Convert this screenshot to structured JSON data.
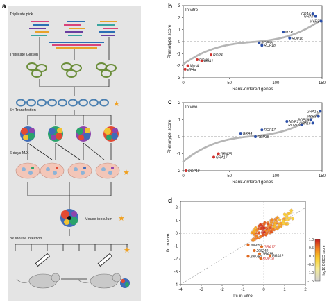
{
  "panel_letters": {
    "a": "a",
    "b": "b",
    "c": "c",
    "d": "d"
  },
  "workflow": {
    "steps": [
      "Triplicate pick",
      "Triplicate Gibson",
      "5× Transfection",
      "6 days M/X",
      "Mouse inoculum",
      "8× Mouse infection"
    ],
    "star_color": "#f0a020"
  },
  "chart_data": [
    {
      "panel": "b",
      "type": "scatter",
      "inset_title": "In vitro",
      "xlabel": "Rank-ordered genes",
      "ylabel": "Phenotype score",
      "xlim": [
        0,
        150
      ],
      "ylim": [
        -3,
        3
      ],
      "xticks": [
        0,
        50,
        100,
        150
      ],
      "yticks": [
        -3,
        -2,
        -1,
        0,
        1,
        2,
        3
      ],
      "baseline_y": 0,
      "background_color": "#b5b5b5",
      "n_points": 150,
      "min": -2.6,
      "max": 2.5,
      "highlighted": [
        {
          "label": "GRA6",
          "x": 140,
          "y": 2.3,
          "color": "#2b4fa8"
        },
        {
          "label": "GRA4",
          "x": 143,
          "y": 2.1,
          "color": "#2b4fa8"
        },
        {
          "label": "MYR3",
          "x": 149,
          "y": 1.7,
          "color": "#2b4fa8"
        },
        {
          "label": "MYR1",
          "x": 108,
          "y": 0.8,
          "color": "#2b4fa8"
        },
        {
          "label": "ROP38",
          "x": 82,
          "y": -0.1,
          "color": "#2b4fa8"
        },
        {
          "label": "ROP18",
          "x": 85,
          "y": -0.3,
          "color": "#2b4fa8"
        },
        {
          "label": "ROP16",
          "x": 115,
          "y": 0.3,
          "color": "#2b4fa8"
        },
        {
          "label": "ROP4",
          "x": 30,
          "y": -1.1,
          "color": "#d0312d"
        },
        {
          "label": "RON5",
          "x": 15,
          "y": -1.5,
          "color": "#d0312d"
        },
        {
          "label": "AMA1",
          "x": 20,
          "y": -1.6,
          "color": "#d0312d"
        },
        {
          "label": "MyoA",
          "x": 5,
          "y": -2.0,
          "color": "#d0312d"
        },
        {
          "label": "eIF4a",
          "x": 2,
          "y": -2.3,
          "color": "#d0312d"
        }
      ]
    },
    {
      "panel": "c",
      "type": "scatter",
      "inset_title": "In vivo",
      "xlabel": "Rank-ordered genes",
      "ylabel": "Phenotype score",
      "xlim": [
        0,
        150
      ],
      "ylim": [
        -2,
        2
      ],
      "xticks": [
        0,
        50,
        100,
        150
      ],
      "yticks": [
        -2,
        -1,
        0,
        1,
        2
      ],
      "baseline_y": 0,
      "background_color": "#b5b5b5",
      "n_points": 150,
      "min": -2.0,
      "max": 2.1,
      "highlighted": [
        {
          "label": "GRA15",
          "x": 148,
          "y": 1.5,
          "color": "#2b4fa8"
        },
        {
          "label": "MYR3",
          "x": 146,
          "y": 1.2,
          "color": "#2b4fa8"
        },
        {
          "label": "ROP13",
          "x": 138,
          "y": 1.0,
          "color": "#2b4fa8"
        },
        {
          "label": "GRA16",
          "x": 140,
          "y": 0.8,
          "color": "#2b4fa8"
        },
        {
          "label": "MYR1",
          "x": 112,
          "y": 0.9,
          "color": "#2b4fa8"
        },
        {
          "label": "ROP17",
          "x": 85,
          "y": 0.4,
          "color": "#2b4fa8"
        },
        {
          "label": "GRA4",
          "x": 62,
          "y": 0.2,
          "color": "#2b4fa8"
        },
        {
          "label": "ROP38",
          "x": 78,
          "y": 0.0,
          "color": "#2b4fa8"
        },
        {
          "label": "ROP16",
          "x": 128,
          "y": 0.7,
          "color": "#2b4fa8"
        },
        {
          "label": "GRA25",
          "x": 38,
          "y": -1.0,
          "color": "#d0312d"
        },
        {
          "label": "GRA17",
          "x": 33,
          "y": -1.2,
          "color": "#d0312d"
        },
        {
          "label": "ROP18",
          "x": 3,
          "y": -2.0,
          "color": "#d0312d"
        }
      ]
    },
    {
      "panel": "d",
      "type": "scatter",
      "xlabel": "lfc in vitro",
      "ylabel": "lfc in vivo",
      "xlim": [
        -4,
        2
      ],
      "ylim": [
        -4,
        2.5
      ],
      "xticks": [
        -4,
        -3,
        -2,
        -1,
        0,
        1,
        2
      ],
      "yticks": [
        -4,
        -3,
        -2,
        -1,
        0,
        1,
        2
      ],
      "colorbar": {
        "label": "log10 DISCO score",
        "min": -1.5,
        "max": 1.0,
        "ticks": [
          1.0,
          0.5,
          0.0,
          -0.5,
          -1.0,
          -1.5
        ]
      },
      "labelled_points": [
        {
          "label": "206650",
          "x": -0.75,
          "y": -0.9,
          "color": "#222222"
        },
        {
          "label": "GRA17",
          "x": -0.1,
          "y": -1.05,
          "color": "#d0312d"
        },
        {
          "label": "205240",
          "x": -0.45,
          "y": -1.35,
          "color": "#222222"
        },
        {
          "label": "GRA38",
          "x": -0.2,
          "y": -1.6,
          "color": "#222222"
        },
        {
          "label": "GRA12",
          "x": 0.3,
          "y": -1.75,
          "color": "#222222"
        },
        {
          "label": "290780",
          "x": -0.75,
          "y": -1.8,
          "color": "#222222"
        },
        {
          "label": "ROP18",
          "x": -0.15,
          "y": -1.95,
          "color": "#d0312d"
        }
      ]
    }
  ]
}
